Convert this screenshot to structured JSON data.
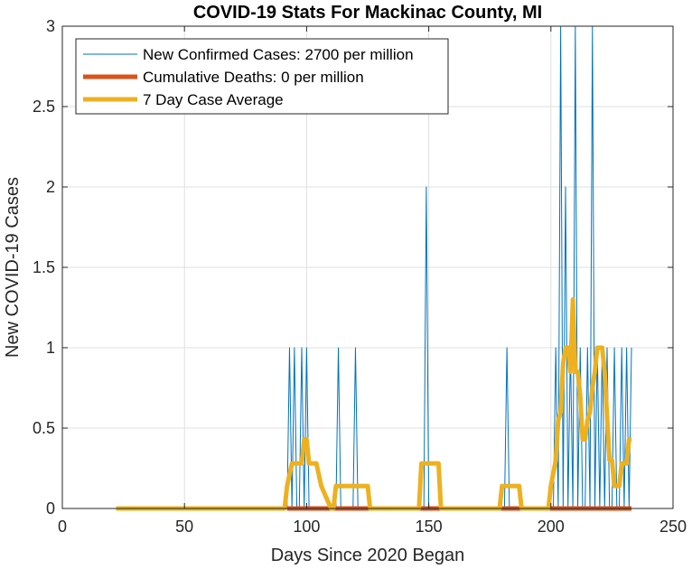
{
  "chart_data": {
    "type": "line",
    "title": "COVID-19 Stats For Mackinac County, MI",
    "xlabel": "Days Since 2020 Began",
    "ylabel": "New COVID-19 Cases",
    "xlim": [
      0,
      250
    ],
    "ylim": [
      0,
      3
    ],
    "xticks": [
      0,
      50,
      100,
      150,
      200,
      250
    ],
    "yticks": [
      0,
      0.5,
      1,
      1.5,
      2,
      2.5,
      3
    ],
    "xtick_labels": [
      "0",
      "50",
      "100",
      "150",
      "200",
      "250"
    ],
    "ytick_labels": [
      "0",
      "0.5",
      "1",
      "1.5",
      "2",
      "2.5",
      "3"
    ],
    "grid": true,
    "legend_position": "top-left",
    "series": [
      {
        "name": "New Confirmed Cases: 2700 per million",
        "color": "#0072BD",
        "style": "thin",
        "x": [
          22,
          92,
          93,
          94,
          95,
          96,
          97,
          98,
          99,
          100,
          101,
          102,
          112,
          113,
          114,
          119,
          120,
          121,
          148,
          149,
          150,
          181,
          182,
          183,
          201,
          202,
          203,
          204,
          205,
          206,
          207,
          208,
          209,
          210,
          211,
          212,
          213,
          214,
          215,
          216,
          217,
          218,
          219,
          220,
          221,
          222,
          223,
          224,
          225,
          226,
          227,
          228,
          229,
          230,
          231,
          232,
          233
        ],
        "y": [
          0,
          0,
          1,
          0,
          1,
          0,
          0,
          1,
          0,
          1,
          0,
          0,
          0,
          1,
          0,
          0,
          1,
          0,
          0,
          2,
          0,
          0,
          1,
          0,
          0,
          1,
          0,
          3,
          0,
          2,
          0,
          1,
          0,
          3,
          0,
          1,
          0,
          0,
          1,
          0,
          3,
          0,
          1,
          0,
          1,
          0,
          1,
          0,
          0,
          1,
          0,
          0,
          1,
          0,
          1,
          0,
          1
        ]
      },
      {
        "name": "Cumulative Deaths: 0 per million",
        "color": "#D95319",
        "style": "thick",
        "x": [
          92,
          233
        ],
        "y": [
          0,
          0
        ]
      },
      {
        "name": "7 Day Case Average",
        "color": "#EDB120",
        "style": "thick",
        "x": [
          22,
          91,
          92,
          94,
          96,
          98,
          99,
          100,
          101,
          103,
          104,
          106,
          110,
          111,
          112,
          114,
          125,
          126,
          146,
          147,
          149,
          154,
          155,
          179,
          180,
          182,
          187,
          188,
          199,
          200,
          202,
          203,
          204,
          205,
          206,
          207,
          208,
          209,
          210,
          211,
          212,
          213,
          214,
          215,
          216,
          217,
          218,
          219,
          220,
          221,
          222,
          223,
          224,
          225,
          226,
          227,
          228,
          229,
          230,
          231,
          232,
          233
        ],
        "y": [
          0,
          0,
          0.14,
          0.28,
          0.28,
          0.28,
          0.43,
          0.43,
          0.28,
          0.28,
          0.28,
          0.14,
          0,
          0,
          0.14,
          0.14,
          0.14,
          0,
          0,
          0.28,
          0.28,
          0.28,
          0,
          0,
          0.14,
          0.14,
          0.14,
          0,
          0,
          0.14,
          0.3,
          0.55,
          0.6,
          0.9,
          1.0,
          1.0,
          0.85,
          1.3,
          0.85,
          0.85,
          0.7,
          0.43,
          0.43,
          0.55,
          0.6,
          0.75,
          0.85,
          1.0,
          1.0,
          1.0,
          0.85,
          0.57,
          0.3,
          0.3,
          0.14,
          0.14,
          0.14,
          0.28,
          0.28,
          0.28,
          0.43,
          0.43
        ]
      }
    ]
  }
}
